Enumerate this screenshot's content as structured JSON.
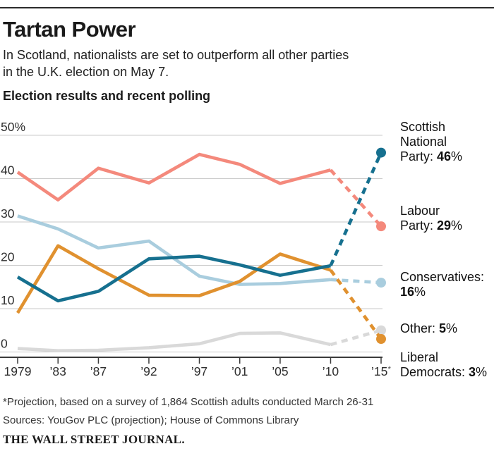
{
  "header": {
    "title": "Tartan Power",
    "subtitle_line1": "In Scotland, nationalists are set to outperform all other parties",
    "subtitle_line2": "in the U.K. election on May 7.",
    "section_title": "Election results and recent polling"
  },
  "chart_data": {
    "type": "line",
    "title": "Election results and recent polling",
    "x": [
      1979,
      1983,
      1987,
      1992,
      1997,
      2001,
      2005,
      2010,
      2015
    ],
    "x_tick_labels": [
      "1979",
      "’83",
      "’87",
      "’92",
      "’97",
      "’01",
      "’05",
      "’10",
      "’15*"
    ],
    "y_ticks": [
      0,
      10,
      20,
      30,
      40,
      50
    ],
    "y_tick_labels": [
      "0",
      "10",
      "20",
      "30",
      "40",
      "50%"
    ],
    "ylim": [
      0,
      50
    ],
    "grid": "horizontal",
    "legend_position": "right",
    "projection_note": "last segment (2010 to 2015) is a dashed projection ending in a dot",
    "series": [
      {
        "name": "Other",
        "color": "#d9d9d9",
        "values": [
          0.8,
          0.3,
          0.4,
          1.0,
          1.9,
          4.3,
          4.4,
          1.7,
          5
        ]
      },
      {
        "name": "Conservatives",
        "color": "#a9cdde",
        "values": [
          31.4,
          28.4,
          24.0,
          25.6,
          17.5,
          15.6,
          15.8,
          16.7,
          16
        ]
      },
      {
        "name": "Liberal Democrats",
        "color": "#e0912f",
        "values": [
          9.0,
          24.5,
          19.2,
          13.1,
          13.0,
          16.3,
          22.6,
          18.9,
          3
        ]
      },
      {
        "name": "Labour Party",
        "color": "#f4897c",
        "values": [
          41.5,
          35.1,
          42.4,
          39.0,
          45.6,
          43.3,
          38.9,
          42.0,
          29
        ]
      },
      {
        "name": "Scottish National Party",
        "color": "#16708f",
        "values": [
          17.3,
          11.8,
          14.0,
          21.5,
          22.1,
          20.1,
          17.7,
          19.9,
          46
        ]
      }
    ]
  },
  "legend": {
    "snp": {
      "line1": "Scottish",
      "line2": "National",
      "line3_prefix": "Party: ",
      "value": "46",
      "suffix": "%"
    },
    "labour": {
      "line1": "Labour",
      "line2_prefix": "Party: ",
      "value": "29",
      "suffix": "%"
    },
    "conservatives": {
      "line1": "Conservatives:",
      "value": "16",
      "suffix": "%"
    },
    "other": {
      "prefix": "Other: ",
      "value": "5",
      "suffix": "%"
    },
    "libdem": {
      "line1": "Liberal",
      "line2_prefix": "Democrats: ",
      "value": "3",
      "suffix": "%"
    }
  },
  "footer": {
    "footnote": "*Projection, based on a survey of 1,864 Scottish adults conducted March 26-31",
    "sources": "Sources: YouGov PLC (projection); House of Commons Library",
    "brand": "THE WALL STREET JOURNAL."
  }
}
